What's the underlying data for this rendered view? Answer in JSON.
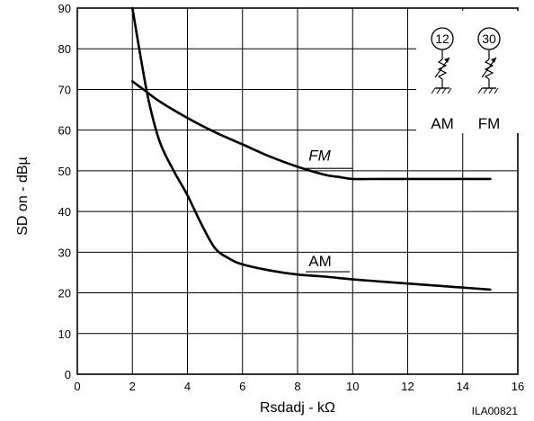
{
  "chart_data": {
    "type": "line",
    "title": "",
    "xlabel": "Rsdadj - kΩ",
    "ylabel": "SD on - dBµ",
    "xlim": [
      0,
      16
    ],
    "ylim": [
      0,
      90
    ],
    "xticks": [
      0,
      2,
      4,
      6,
      8,
      10,
      12,
      14,
      16
    ],
    "yticks": [
      0,
      10,
      20,
      30,
      40,
      50,
      60,
      70,
      80,
      90
    ],
    "grid": true,
    "series": [
      {
        "name": "FM",
        "x": [
          2,
          2.5,
          3,
          4,
          5,
          6,
          7,
          8,
          9,
          9.5,
          10,
          11,
          12,
          13,
          14,
          15
        ],
        "y": [
          72,
          69.5,
          67,
          63,
          59.5,
          56.5,
          53.5,
          51,
          49,
          48.5,
          48,
          48,
          48,
          48,
          48,
          48
        ]
      },
      {
        "name": "AM",
        "x": [
          2,
          2.3,
          2.6,
          3,
          3.5,
          4,
          4.5,
          5,
          5.5,
          6,
          7,
          8,
          9,
          10,
          11,
          12,
          13,
          14,
          15
        ],
        "y": [
          90,
          78,
          67,
          57,
          50,
          44,
          37,
          31,
          28.5,
          27,
          25.5,
          24.5,
          24,
          23.3,
          22.8,
          22.3,
          21.8,
          21.3,
          20.8
        ]
      }
    ],
    "annotations": [
      "FM",
      "AM"
    ],
    "inset": {
      "pins": [
        "12",
        "30"
      ],
      "labels": [
        "AM",
        "FM"
      ]
    },
    "figure_id": "ILA00821"
  }
}
